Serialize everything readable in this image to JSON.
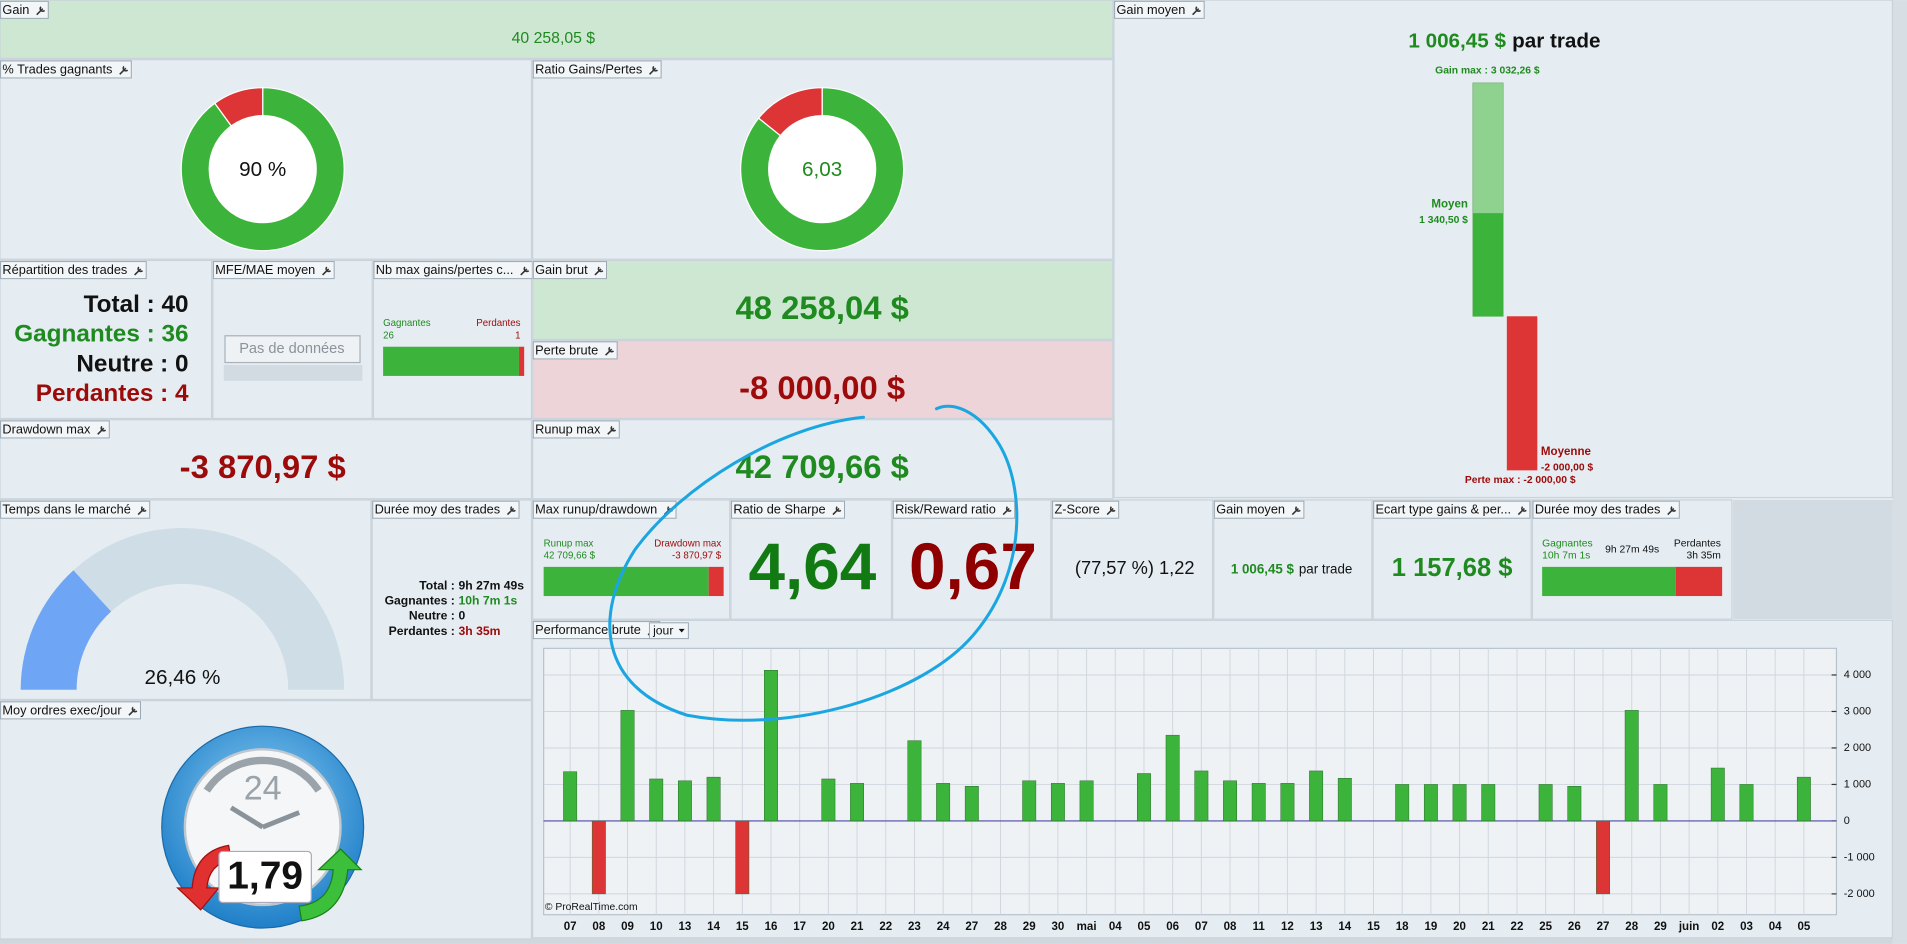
{
  "gain": {
    "title": "Gain",
    "value": "40 258,05 $"
  },
  "gain_moyen": {
    "title": "Gain moyen",
    "value": "1 006,45 $",
    "suffix": "par trade",
    "max_gain_label": "Gain max : 3 032,26 $",
    "max_gain": 3032.26,
    "avg_win_label": "Moyen",
    "avg_win_value": "1 340,50 $",
    "avg_win": 1340.5,
    "avg_loss_label": "Moyenne",
    "avg_loss_value": "-2 000,00 $",
    "avg_loss": -2000,
    "max_loss_label": "Perte max : -2 000,00 $",
    "max_loss": -2000
  },
  "pct_trades_gagnants": {
    "title": "% Trades gagnants",
    "value": 90,
    "label": "90 %"
  },
  "ratio_gains_pertes": {
    "title": "Ratio Gains/Pertes",
    "value": 6.03,
    "label": "6,03"
  },
  "repartition": {
    "title": "Répartition des trades",
    "lines": [
      "Total : 40",
      "Gagnantes : 36",
      "Neutre : 0",
      "Perdantes : 4"
    ]
  },
  "mfe_mae": {
    "title": "MFE/MAE moyen",
    "message": "Pas de données"
  },
  "nb_max": {
    "title": "Nb max gains/pertes c...",
    "win_label": "Gagnantes",
    "loss_label": "Perdantes",
    "wins": 26,
    "losses": 1
  },
  "gain_brut": {
    "title": "Gain brut",
    "value": "48 258,04 $"
  },
  "perte_brute": {
    "title": "Perte brute",
    "value": "-8 000,00 $"
  },
  "drawdown_max": {
    "title": "Drawdown max",
    "value": "-3 870,97 $"
  },
  "runup_max": {
    "title": "Runup max",
    "value": "42 709,66 $"
  },
  "temps_marche": {
    "title": "Temps dans le marché",
    "value": 26.46,
    "label": "26,46 %"
  },
  "duree_moy": {
    "title": "Durée moy des trades",
    "rows": [
      [
        "Total :",
        "9h 27m 49s"
      ],
      [
        "Gagnantes :",
        "10h 7m 1s"
      ],
      [
        "Neutre :",
        "0"
      ],
      [
        "Perdantes :",
        "3h 35m"
      ]
    ]
  },
  "max_runup_drawdown": {
    "title": "Max runup/drawdown",
    "runup_label": "Runup max",
    "runup_value": "42 709,66 $",
    "runup": 42709.66,
    "drawdown_label": "Drawdown max",
    "drawdown_value": "-3 870,97 $",
    "drawdown": -3870.97
  },
  "sharpe": {
    "title": "Ratio de Sharpe",
    "value": "4,64"
  },
  "risk_reward": {
    "title": "Risk/Reward ratio",
    "value": "0,67"
  },
  "z_score": {
    "title": "Z-Score",
    "value": "(77,57 %) 1,22"
  },
  "gain_moyen_small": {
    "title": "Gain moyen",
    "value": "1 006,45 $",
    "suffix": "par trade"
  },
  "ecart_type": {
    "title": "Ecart type gains & per...",
    "value": "1 157,68 $"
  },
  "duree_trades": {
    "title": "Durée moy des trades",
    "win_label": "Gagnantes",
    "win_value": "10h 7m 1s",
    "total_value": "9h 27m 49s",
    "loss_label": "Perdantes",
    "loss_value": "3h 35m"
  },
  "moy_ordres": {
    "title": "Moy ordres exec/jour",
    "value": "1,79",
    "clock_label": "24"
  },
  "chart_data": {
    "type": "bar",
    "title": "Performance brute",
    "period": "jour",
    "credit": "© ProRealTime.com",
    "categories": [
      "07",
      "08",
      "09",
      "10",
      "13",
      "14",
      "15",
      "16",
      "17",
      "20",
      "21",
      "22",
      "23",
      "24",
      "27",
      "28",
      "29",
      "30",
      "mai",
      "04",
      "05",
      "06",
      "07",
      "08",
      "11",
      "12",
      "13",
      "14",
      "15",
      "18",
      "19",
      "20",
      "21",
      "22",
      "25",
      "26",
      "27",
      "28",
      "29",
      "juin",
      "02",
      "03",
      "04",
      "05"
    ],
    "values": [
      1350,
      -2000,
      3030,
      1150,
      1100,
      1200,
      -2000,
      4130,
      null,
      1150,
      1030,
      null,
      2200,
      1030,
      950,
      null,
      1100,
      1030,
      1100,
      null,
      1300,
      2350,
      1370,
      1100,
      1030,
      1030,
      1370,
      1170,
      null,
      1000,
      1000,
      1000,
      1000,
      null,
      1000,
      950,
      -2000,
      3030,
      1000,
      null,
      1450,
      1000,
      null,
      1200
    ],
    "positive_color": "#3cb43c",
    "negative_color": "#dd3535",
    "ylim": [
      -2570,
      4730
    ],
    "yticks": [
      {
        "value": 4000,
        "label": "4 000"
      },
      {
        "value": 3000,
        "label": "3 000"
      },
      {
        "value": 2000,
        "label": "2 000"
      },
      {
        "value": 1000,
        "label": "1 000"
      },
      0,
      {
        "value": -1000,
        "label": "-1 000"
      },
      {
        "value": -2000,
        "label": "-2 000"
      }
    ],
    "grid": true
  }
}
